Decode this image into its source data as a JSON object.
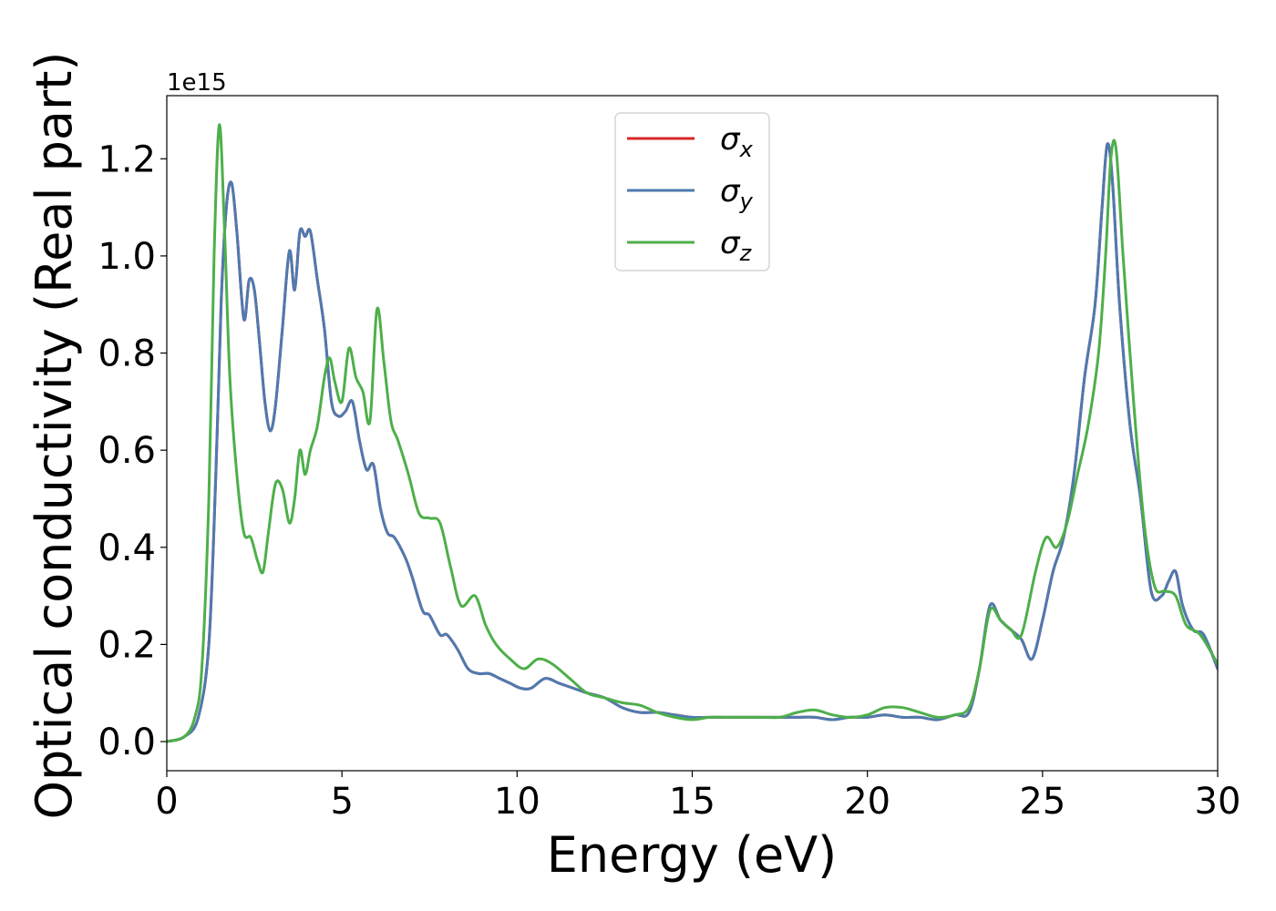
{
  "chart_data": {
    "type": "line",
    "xlabel": "Energy (eV)",
    "ylabel": "Optical conductivity (Real part)",
    "y_offset_label": "1e15",
    "xlim": [
      0,
      30
    ],
    "ylim": [
      -0.06,
      1.33
    ],
    "x_ticks": [
      0,
      5,
      10,
      15,
      20,
      25,
      30
    ],
    "y_ticks": [
      0.0,
      0.2,
      0.4,
      0.6,
      0.8,
      1.0,
      1.2
    ],
    "x_tick_labels": [
      "0",
      "5",
      "10",
      "15",
      "20",
      "25",
      "30"
    ],
    "y_tick_labels": [
      "0.0",
      "0.2",
      "0.4",
      "0.6",
      "0.8",
      "1.0",
      "1.2"
    ],
    "grid": false,
    "legend_position": "top-center",
    "series": [
      {
        "name": "σx",
        "legend_base": "σ",
        "legend_sub": "x",
        "color": "#d62728",
        "x": [
          0,
          0.5,
          0.9,
          1.2,
          1.4,
          1.55,
          1.7,
          1.85,
          2.0,
          2.2,
          2.35,
          2.5,
          2.65,
          2.8,
          2.95,
          3.1,
          3.3,
          3.5,
          3.65,
          3.8,
          3.95,
          4.1,
          4.3,
          4.5,
          4.7,
          4.9,
          5.1,
          5.3,
          5.5,
          5.7,
          5.9,
          6.1,
          6.3,
          6.5,
          6.8,
          7.0,
          7.3,
          7.5,
          7.8,
          8.0,
          8.3,
          8.6,
          8.9,
          9.2,
          9.5,
          9.8,
          10.1,
          10.4,
          10.8,
          11.2,
          11.6,
          12.0,
          12.5,
          13.0,
          13.5,
          14.0,
          14.5,
          15.0,
          15.5,
          16.0,
          16.5,
          17.0,
          17.5,
          18.0,
          18.5,
          19.0,
          19.5,
          20.0,
          20.5,
          21.0,
          21.5,
          22.0,
          22.5,
          22.9,
          23.2,
          23.5,
          23.8,
          24.1,
          24.4,
          24.7,
          25.0,
          25.3,
          25.6,
          25.9,
          26.2,
          26.5,
          26.7,
          26.85,
          27.0,
          27.2,
          27.5,
          27.8,
          28.1,
          28.4,
          28.6,
          28.8,
          29.0,
          29.3,
          29.6,
          30.0
        ],
        "values": [
          0,
          0.01,
          0.05,
          0.2,
          0.55,
          0.9,
          1.1,
          1.15,
          1.05,
          0.87,
          0.95,
          0.93,
          0.82,
          0.7,
          0.64,
          0.69,
          0.85,
          1.01,
          0.93,
          1.05,
          1.04,
          1.05,
          0.95,
          0.85,
          0.7,
          0.67,
          0.68,
          0.7,
          0.62,
          0.56,
          0.57,
          0.48,
          0.43,
          0.42,
          0.38,
          0.34,
          0.27,
          0.26,
          0.22,
          0.22,
          0.19,
          0.15,
          0.14,
          0.14,
          0.13,
          0.12,
          0.11,
          0.11,
          0.13,
          0.12,
          0.11,
          0.1,
          0.09,
          0.07,
          0.06,
          0.06,
          0.055,
          0.05,
          0.05,
          0.05,
          0.05,
          0.05,
          0.05,
          0.05,
          0.05,
          0.045,
          0.05,
          0.05,
          0.055,
          0.05,
          0.05,
          0.045,
          0.055,
          0.06,
          0.15,
          0.28,
          0.25,
          0.23,
          0.21,
          0.17,
          0.25,
          0.35,
          0.42,
          0.55,
          0.75,
          0.9,
          1.1,
          1.23,
          1.15,
          0.9,
          0.65,
          0.5,
          0.31,
          0.3,
          0.33,
          0.35,
          0.28,
          0.23,
          0.22,
          0.15
        ]
      },
      {
        "name": "σy",
        "legend_base": "σ",
        "legend_sub": "y",
        "color": "#4e7ab0",
        "x": [
          0,
          0.5,
          0.9,
          1.2,
          1.4,
          1.55,
          1.7,
          1.85,
          2.0,
          2.2,
          2.35,
          2.5,
          2.65,
          2.8,
          2.95,
          3.1,
          3.3,
          3.5,
          3.65,
          3.8,
          3.95,
          4.1,
          4.3,
          4.5,
          4.7,
          4.9,
          5.1,
          5.3,
          5.5,
          5.7,
          5.9,
          6.1,
          6.3,
          6.5,
          6.8,
          7.0,
          7.3,
          7.5,
          7.8,
          8.0,
          8.3,
          8.6,
          8.9,
          9.2,
          9.5,
          9.8,
          10.1,
          10.4,
          10.8,
          11.2,
          11.6,
          12.0,
          12.5,
          13.0,
          13.5,
          14.0,
          14.5,
          15.0,
          15.5,
          16.0,
          16.5,
          17.0,
          17.5,
          18.0,
          18.5,
          19.0,
          19.5,
          20.0,
          20.5,
          21.0,
          21.5,
          22.0,
          22.5,
          22.9,
          23.2,
          23.5,
          23.8,
          24.1,
          24.4,
          24.7,
          25.0,
          25.3,
          25.6,
          25.9,
          26.2,
          26.5,
          26.7,
          26.85,
          27.0,
          27.2,
          27.5,
          27.8,
          28.1,
          28.4,
          28.6,
          28.8,
          29.0,
          29.3,
          29.6,
          30.0
        ],
        "values": [
          0,
          0.01,
          0.05,
          0.2,
          0.55,
          0.9,
          1.1,
          1.15,
          1.05,
          0.87,
          0.95,
          0.93,
          0.82,
          0.7,
          0.64,
          0.69,
          0.85,
          1.01,
          0.93,
          1.05,
          1.04,
          1.05,
          0.95,
          0.85,
          0.7,
          0.67,
          0.68,
          0.7,
          0.62,
          0.56,
          0.57,
          0.48,
          0.43,
          0.42,
          0.38,
          0.34,
          0.27,
          0.26,
          0.22,
          0.22,
          0.19,
          0.15,
          0.14,
          0.14,
          0.13,
          0.12,
          0.11,
          0.11,
          0.13,
          0.12,
          0.11,
          0.1,
          0.09,
          0.07,
          0.06,
          0.06,
          0.055,
          0.05,
          0.05,
          0.05,
          0.05,
          0.05,
          0.05,
          0.05,
          0.05,
          0.045,
          0.05,
          0.05,
          0.055,
          0.05,
          0.05,
          0.045,
          0.055,
          0.06,
          0.15,
          0.28,
          0.25,
          0.23,
          0.21,
          0.17,
          0.25,
          0.35,
          0.42,
          0.55,
          0.75,
          0.9,
          1.1,
          1.23,
          1.15,
          0.9,
          0.65,
          0.5,
          0.31,
          0.3,
          0.33,
          0.35,
          0.28,
          0.23,
          0.22,
          0.15
        ]
      },
      {
        "name": "σz",
        "legend_base": "σ",
        "legend_sub": "z",
        "color": "#4daf4a",
        "x": [
          0,
          0.5,
          0.8,
          1.0,
          1.2,
          1.35,
          1.5,
          1.65,
          1.8,
          2.0,
          2.2,
          2.4,
          2.6,
          2.75,
          2.9,
          3.1,
          3.3,
          3.5,
          3.65,
          3.8,
          3.95,
          4.1,
          4.3,
          4.5,
          4.65,
          4.8,
          5.0,
          5.2,
          5.4,
          5.6,
          5.8,
          6.0,
          6.2,
          6.4,
          6.6,
          6.9,
          7.2,
          7.5,
          7.8,
          8.1,
          8.4,
          8.8,
          9.1,
          9.4,
          9.8,
          10.2,
          10.6,
          11.0,
          11.5,
          12.0,
          12.5,
          13.0,
          13.5,
          14.0,
          14.5,
          15.0,
          15.5,
          16.0,
          16.5,
          17.0,
          17.5,
          18.0,
          18.5,
          19.0,
          19.5,
          20.0,
          20.5,
          21.0,
          21.5,
          22.0,
          22.5,
          22.9,
          23.2,
          23.5,
          23.8,
          24.1,
          24.4,
          24.8,
          25.1,
          25.4,
          25.7,
          26.0,
          26.3,
          26.6,
          26.8,
          26.95,
          27.1,
          27.3,
          27.6,
          27.9,
          28.2,
          28.5,
          28.8,
          29.1,
          29.5,
          30.0
        ],
        "values": [
          0,
          0.01,
          0.05,
          0.15,
          0.5,
          1.0,
          1.27,
          1.05,
          0.75,
          0.55,
          0.43,
          0.42,
          0.37,
          0.35,
          0.43,
          0.53,
          0.52,
          0.45,
          0.5,
          0.6,
          0.55,
          0.6,
          0.65,
          0.75,
          0.79,
          0.74,
          0.7,
          0.81,
          0.75,
          0.72,
          0.66,
          0.89,
          0.78,
          0.66,
          0.62,
          0.55,
          0.47,
          0.46,
          0.45,
          0.36,
          0.28,
          0.3,
          0.24,
          0.2,
          0.17,
          0.15,
          0.17,
          0.16,
          0.13,
          0.1,
          0.09,
          0.08,
          0.075,
          0.06,
          0.05,
          0.045,
          0.05,
          0.05,
          0.05,
          0.05,
          0.05,
          0.06,
          0.065,
          0.055,
          0.05,
          0.055,
          0.07,
          0.07,
          0.06,
          0.05,
          0.055,
          0.07,
          0.15,
          0.27,
          0.25,
          0.23,
          0.22,
          0.35,
          0.42,
          0.4,
          0.45,
          0.55,
          0.65,
          0.8,
          1.0,
          1.2,
          1.22,
          1.0,
          0.7,
          0.45,
          0.32,
          0.31,
          0.3,
          0.24,
          0.22,
          0.16
        ]
      }
    ]
  }
}
